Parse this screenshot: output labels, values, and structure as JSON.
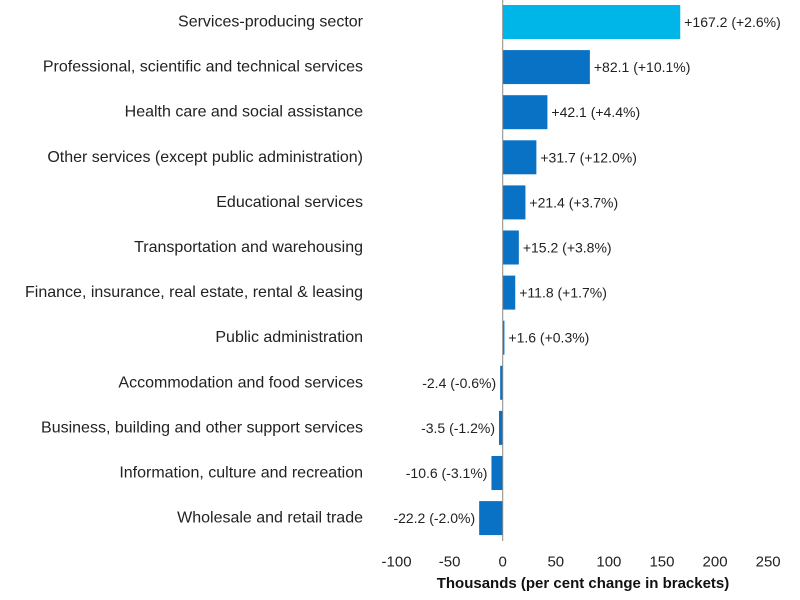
{
  "chart_data": {
    "type": "bar",
    "orientation": "horizontal",
    "categories": [
      "Services-producing sector",
      "Professional, scientific and technical services",
      "Health care and social assistance",
      "Other services (except public administration)",
      "Educational services",
      "Transportation and warehousing",
      "Finance, insurance, real estate, rental & leasing",
      "Public administration",
      "Accommodation and food services",
      "Business, building and other support services",
      "Information, culture and recreation",
      "Wholesale and retail trade"
    ],
    "values": [
      167.2,
      82.1,
      42.1,
      31.7,
      21.4,
      15.2,
      11.8,
      1.6,
      -2.4,
      -3.5,
      -10.6,
      -22.2
    ],
    "data_labels": [
      "+167.2 (+2.6%)",
      "+82.1 (+10.1%)",
      "+42.1 (+4.4%)",
      "+31.7 (+12.0%)",
      "+21.4 (+3.7%)",
      "+15.2 (+3.8%)",
      "+11.8 (+1.7%)",
      "+1.6 (+0.3%)",
      "-2.4 (-0.6%)",
      "-3.5 (-1.2%)",
      "-10.6 (-3.1%)",
      "-22.2 (-2.0%)"
    ],
    "highlight_index": 0,
    "colors": {
      "highlight": "#00b5e8",
      "default": "#0a72c4"
    },
    "xlim": [
      -125,
      280
    ],
    "xticks": [
      -100,
      -50,
      0,
      50,
      100,
      150,
      200,
      250
    ],
    "xtick_labels": [
      "-100",
      "-50",
      "0",
      "50",
      "100",
      "150",
      "200",
      "250"
    ],
    "xlabel": "Thousands (per cent change in brackets)",
    "ylabel": "",
    "title": "",
    "grid": false
  }
}
